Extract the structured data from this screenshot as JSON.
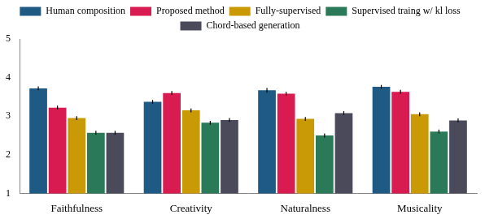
{
  "chart_data": {
    "type": "bar",
    "categories": [
      "Faithfulness",
      "Creativity",
      "Naturalness",
      "Musicality"
    ],
    "series": [
      {
        "name": "Human composition",
        "color": "#1f5a85",
        "values": [
          3.72,
          3.37,
          3.67,
          3.76
        ],
        "errors": [
          0.05,
          0.05,
          0.06,
          0.05
        ]
      },
      {
        "name": "Proposed method",
        "color": "#d81b50",
        "values": [
          3.22,
          3.6,
          3.58,
          3.63
        ],
        "errors": [
          0.05,
          0.05,
          0.05,
          0.05
        ]
      },
      {
        "name": "Fully-supervised",
        "color": "#c99a06",
        "values": [
          2.95,
          3.15,
          2.93,
          3.05
        ],
        "errors": [
          0.05,
          0.05,
          0.05,
          0.05
        ]
      },
      {
        "name": "Supervised traing w/ kl loss",
        "color": "#2a7a5a",
        "values": [
          2.57,
          2.83,
          2.5,
          2.6
        ],
        "errors": [
          0.05,
          0.05,
          0.05,
          0.05
        ]
      },
      {
        "name": "Chord-based generation",
        "color": "#4a4a5a",
        "values": [
          2.57,
          2.9,
          3.08,
          2.89
        ],
        "errors": [
          0.05,
          0.05,
          0.05,
          0.05
        ]
      }
    ],
    "ylim": [
      1,
      5
    ],
    "yticks": [
      1,
      2,
      3,
      4,
      5
    ],
    "grid": false,
    "legend": "top"
  }
}
